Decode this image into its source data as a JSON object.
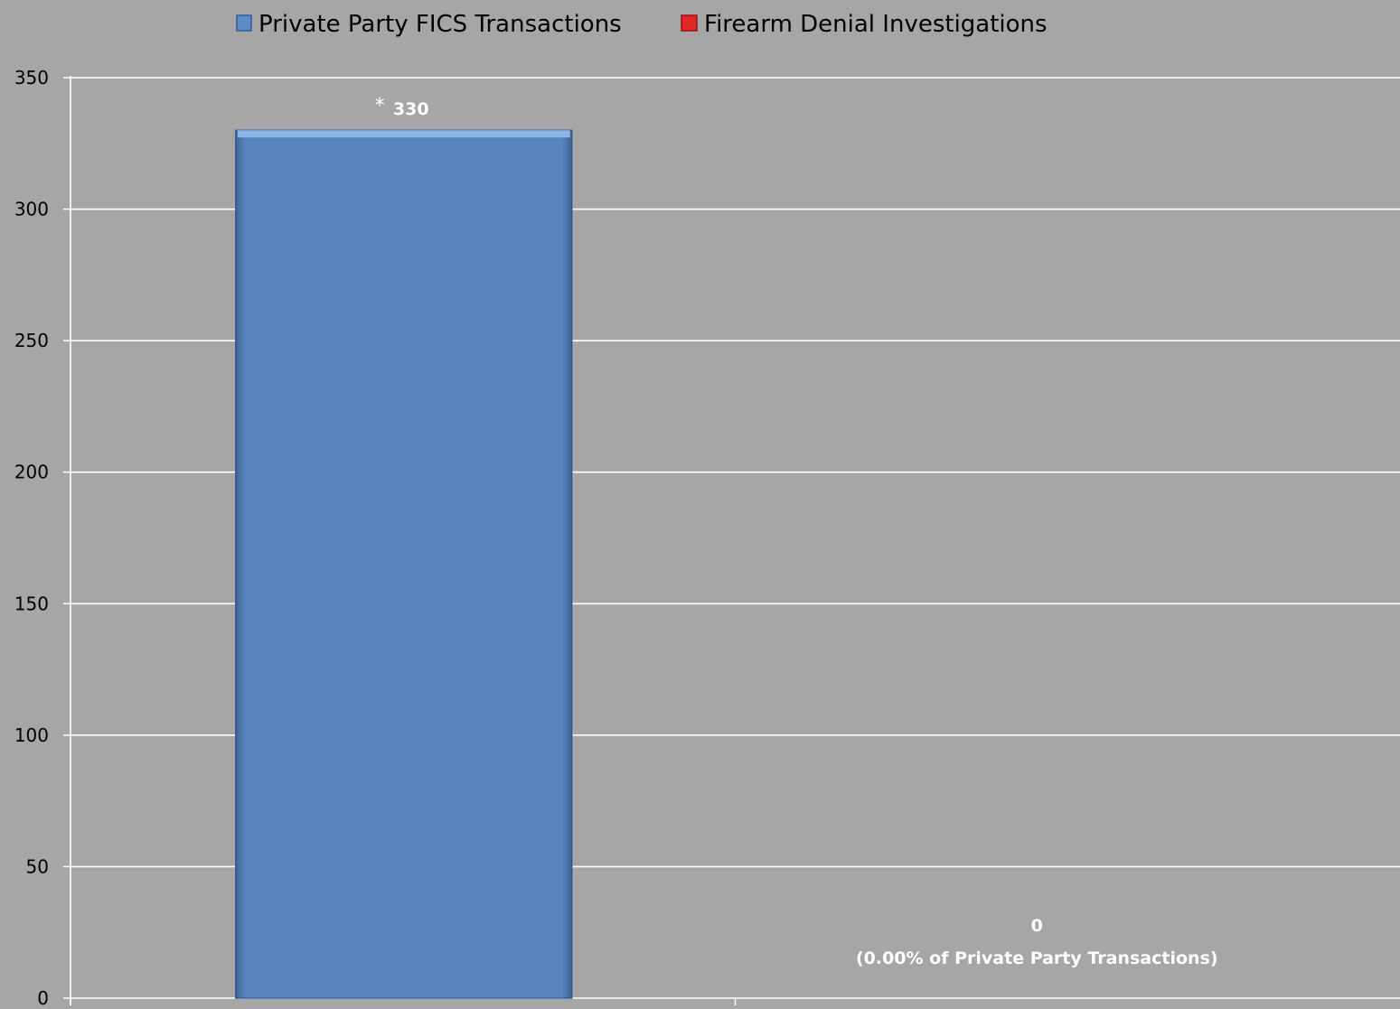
{
  "chart_data": {
    "type": "bar",
    "title": "",
    "xlabel": "",
    "ylabel": "",
    "ylim": [
      0,
      350
    ],
    "yticks": [
      0,
      50,
      100,
      150,
      200,
      250,
      300,
      350
    ],
    "grid": true,
    "legend_position": "top-center",
    "series": [
      {
        "name": "Private Party FICS Transactions",
        "value": 330,
        "color": "#5b8bc9",
        "label_prefix": "*",
        "label": "330"
      },
      {
        "name": "Firearm Denial Investigations",
        "value": 0,
        "color": "#e32626",
        "label": "0",
        "label_note": "(0.00% of Private Party Transactions)"
      }
    ]
  }
}
